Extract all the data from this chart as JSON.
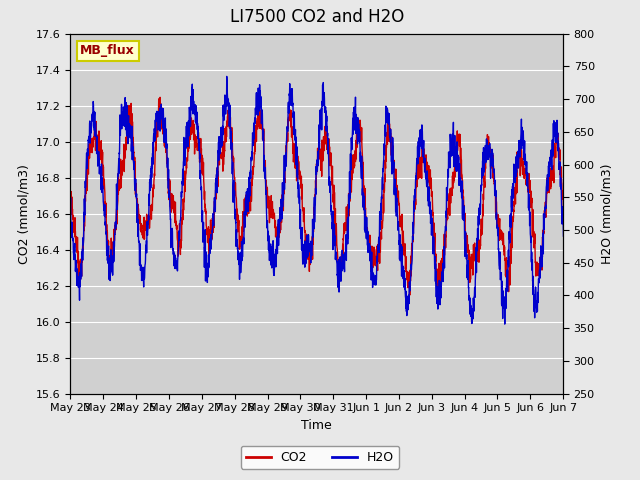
{
  "title": "LI7500 CO2 and H2O",
  "xlabel": "Time",
  "ylabel_left": "CO2 (mmol/m3)",
  "ylabel_right": "H2O (mmol/m3)",
  "co2_ylim": [
    15.6,
    17.6
  ],
  "h2o_ylim": [
    250,
    800
  ],
  "co2_yticks": [
    15.6,
    15.8,
    16.0,
    16.2,
    16.4,
    16.6,
    16.8,
    17.0,
    17.2,
    17.4,
    17.6
  ],
  "h2o_yticks": [
    250,
    300,
    350,
    400,
    450,
    500,
    550,
    600,
    650,
    700,
    750,
    800
  ],
  "xtick_labels": [
    "May 23",
    "May 24",
    "May 25",
    "May 26",
    "May 27",
    "May 28",
    "May 29",
    "May 30",
    "May 31",
    "Jun 1",
    "Jun 2",
    "Jun 3",
    "Jun 4",
    "Jun 5",
    "Jun 6",
    "Jun 7"
  ],
  "co2_color": "#cc0000",
  "h2o_color": "#0000cc",
  "bg_color": "#e8e8e8",
  "plot_bg_color": "#d0d0d0",
  "annotation_text": "MB_flux",
  "annotation_bg": "#ffffcc",
  "annotation_border": "#cccc00",
  "annotation_text_color": "#990000",
  "title_fontsize": 12,
  "axis_label_fontsize": 9,
  "tick_fontsize": 8,
  "legend_fontsize": 9
}
